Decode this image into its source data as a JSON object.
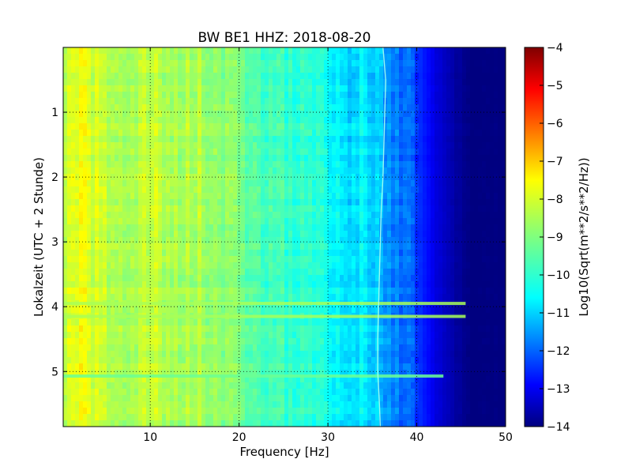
{
  "chart_data": {
    "type": "heatmap",
    "title": "BW BE1 HHZ: 2018-08-20",
    "xlabel": "Frequency [Hz]",
    "ylabel": "Lokalzeit (UTC + 2 Stunde)",
    "xlim": [
      0.2,
      50
    ],
    "ylim": [
      5.85,
      0.0
    ],
    "y_inverted": true,
    "grid": true,
    "grid_style": "dotted",
    "colormap": "jet",
    "x_ticks": [
      10,
      20,
      30,
      40,
      50
    ],
    "x_tick_labels": [
      "10",
      "20",
      "30",
      "40",
      "50"
    ],
    "y_ticks": [
      1,
      2,
      3,
      4,
      5
    ],
    "y_tick_labels": [
      "1",
      "2",
      "3",
      "4",
      "5"
    ],
    "colorbar": {
      "label": "Log10(Sqrt(m**2/s**2/Hz))",
      "range": [
        -14,
        -4
      ],
      "ticks": [
        -4,
        -5,
        -6,
        -7,
        -8,
        -9,
        -10,
        -11,
        -12,
        -13,
        -14
      ],
      "tick_labels": [
        "−4",
        "−5",
        "−6",
        "−7",
        "−8",
        "−9",
        "−10",
        "−11",
        "−12",
        "−13",
        "−14"
      ]
    },
    "spectrum_profile": {
      "frequency_hz": [
        0.5,
        2,
        5,
        8,
        10,
        12,
        15,
        18,
        20,
        22,
        25,
        28,
        30,
        32,
        34,
        36,
        38,
        40,
        42,
        44,
        46,
        50
      ],
      "log10_amplitude": [
        -8.3,
        -8.0,
        -8.4,
        -8.6,
        -8.3,
        -8.6,
        -8.5,
        -8.9,
        -9.1,
        -9.5,
        -9.7,
        -9.9,
        -10.1,
        -10.5,
        -10.8,
        -11.1,
        -11.5,
        -12.2,
        -13.0,
        -13.6,
        -14.0,
        -14.0
      ]
    },
    "tonal_line": {
      "time_h": [
        0.0,
        0.5,
        1.0,
        1.5,
        2.0,
        2.5,
        3.0,
        3.5,
        4.0,
        4.5,
        5.0,
        5.5,
        5.85
      ],
      "frequency_hz": [
        36.2,
        36.5,
        36.4,
        36.3,
        36.2,
        36.0,
        35.9,
        35.8,
        35.7,
        35.6,
        35.6,
        35.8,
        35.9
      ]
    },
    "broadband_events": [
      {
        "time_h": 3.95,
        "f_max_hz": 45.5,
        "level": -8.6
      },
      {
        "time_h": 4.15,
        "f_max_hz": 45.5,
        "level": -8.6
      },
      {
        "time_h": 5.07,
        "f_max_hz": 43.0,
        "level": -9.2
      }
    ]
  }
}
